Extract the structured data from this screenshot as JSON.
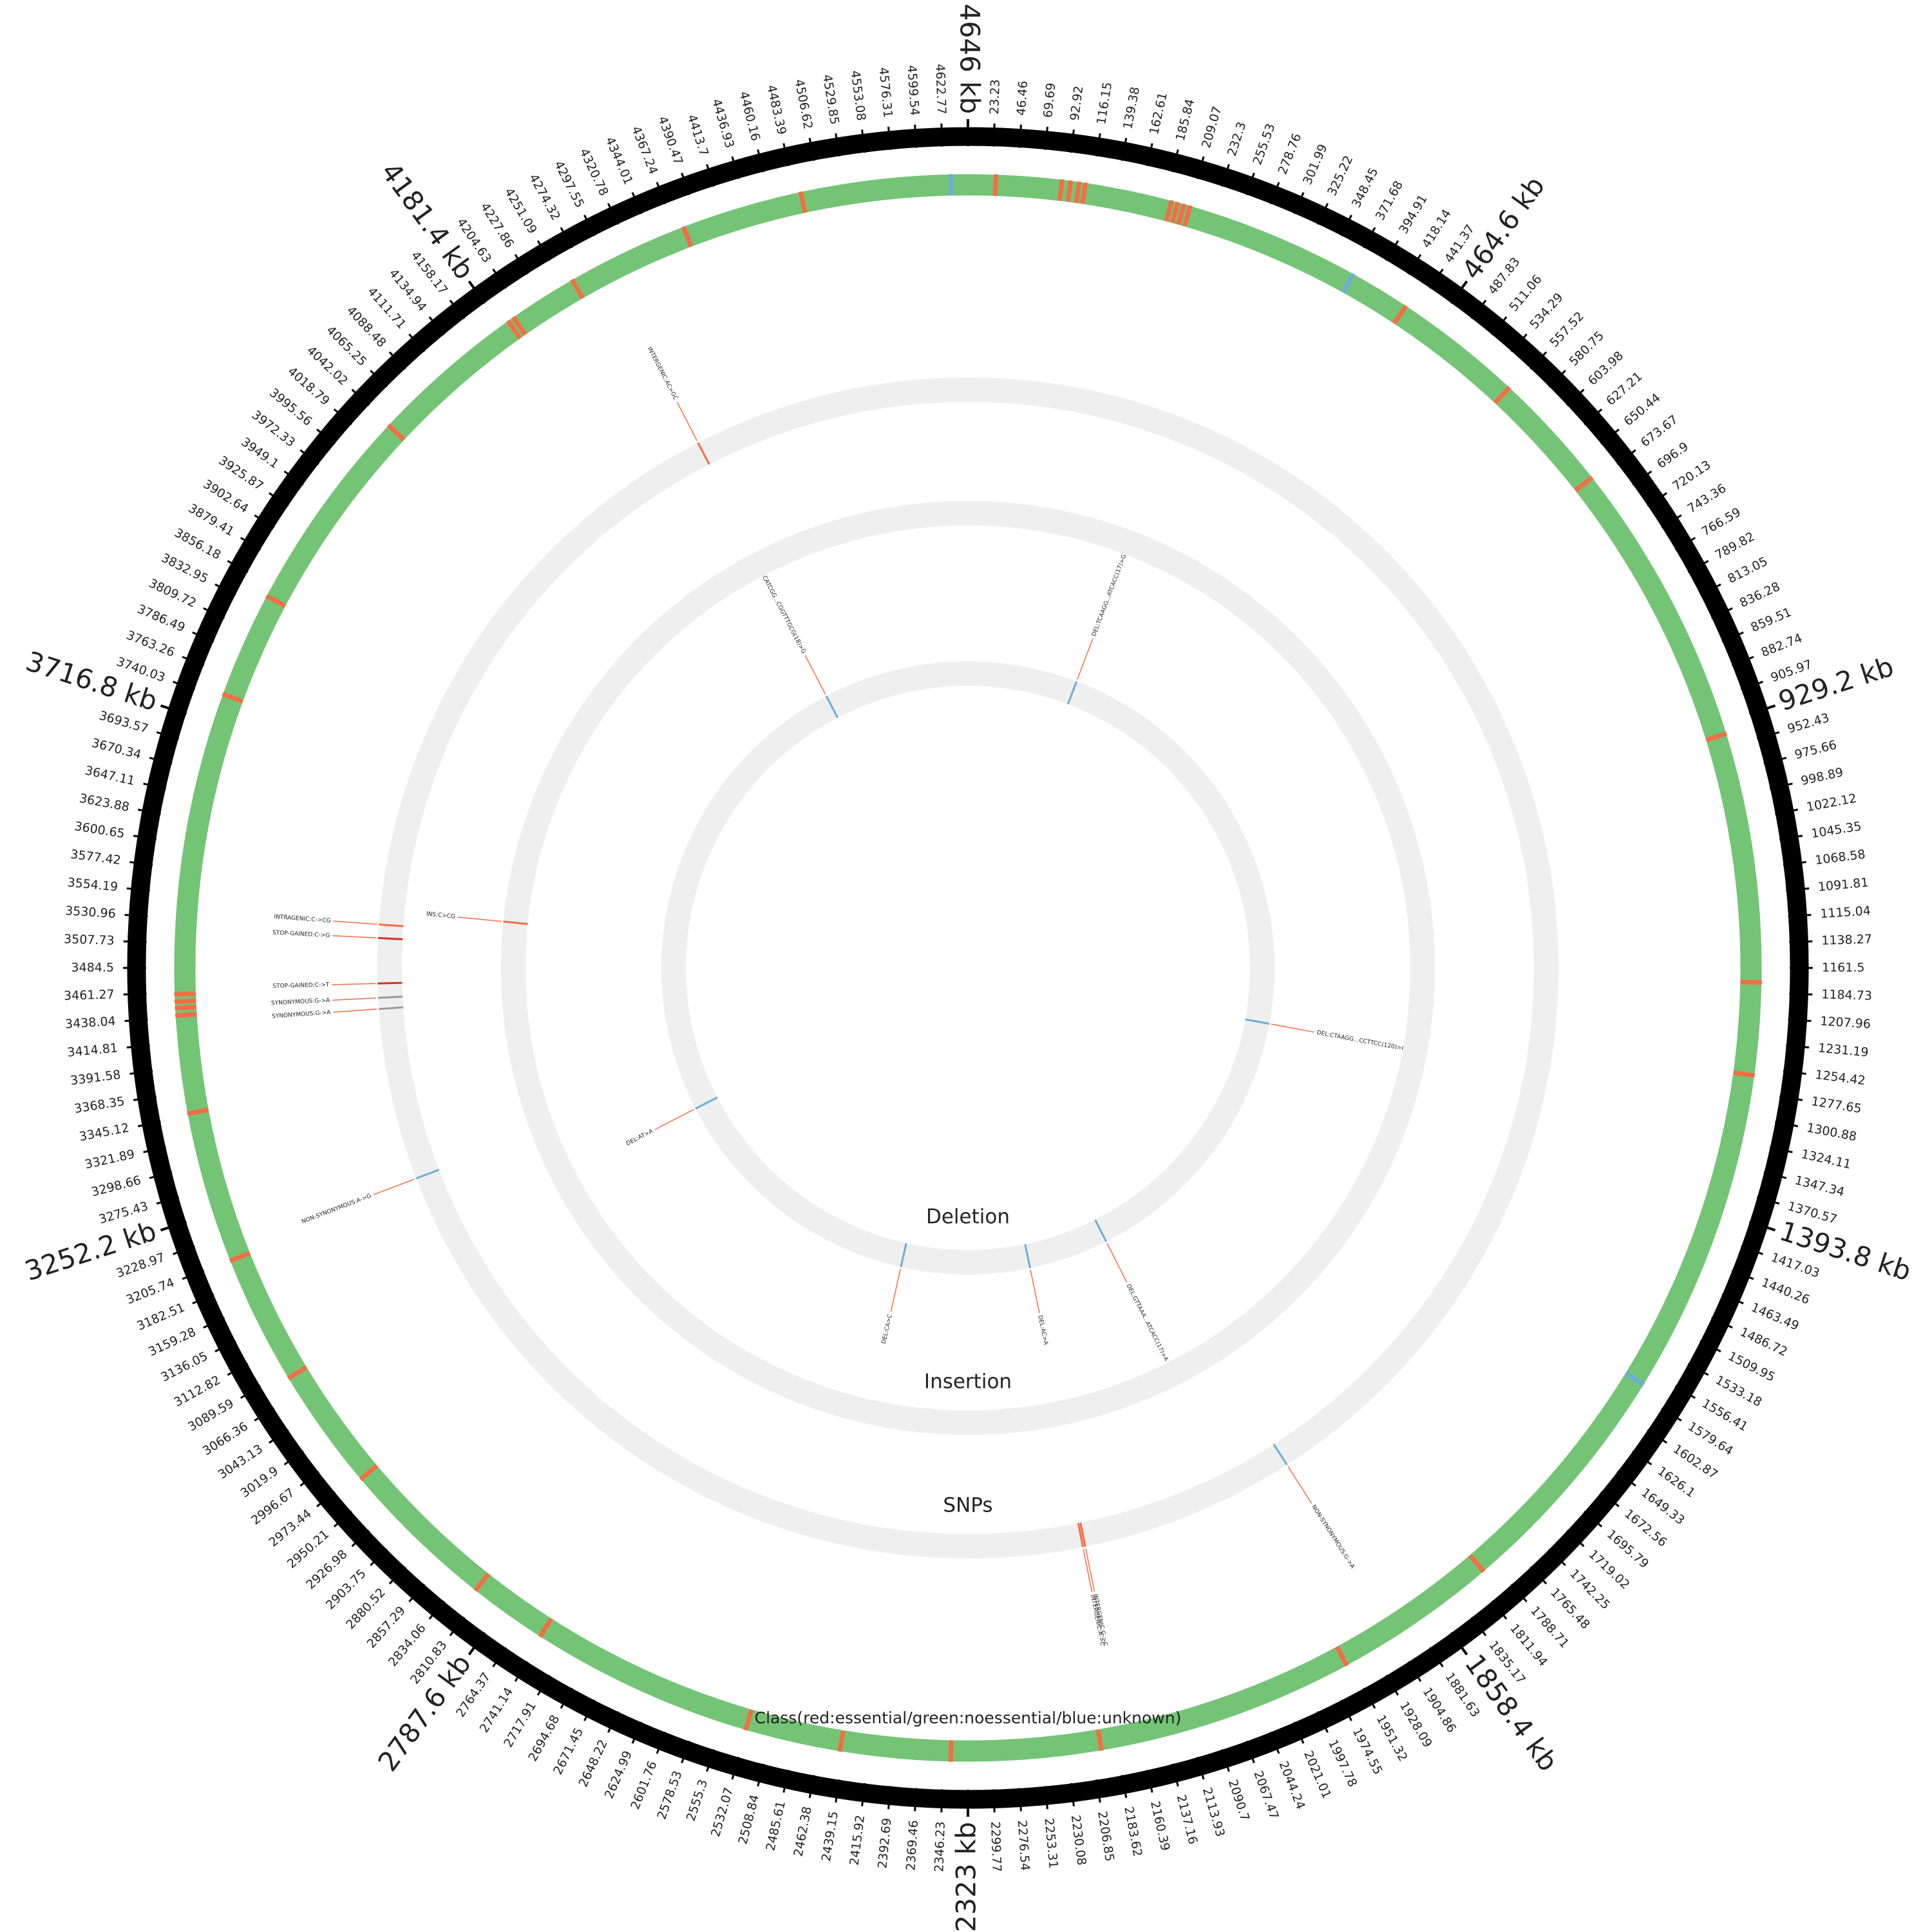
{
  "chart_data": {
    "type": "genome-circle",
    "xlim": [
      0,
      4646
    ],
    "xticks": [
      23.23,
      46.46,
      69.69,
      92.92,
      116.15,
      139.38,
      162.61,
      185.84,
      209.07,
      232.3,
      255.53,
      278.76,
      301.99,
      325.22,
      348.45,
      371.68,
      394.91,
      418.14,
      441.37,
      {
        "value": 464.6,
        "label": "464.6 kb"
      },
      487.83,
      511.06,
      534.29,
      557.52,
      580.75,
      603.98,
      627.21,
      650.44,
      673.67,
      696.9,
      720.13,
      743.36,
      766.59,
      789.82,
      813.05,
      836.28,
      859.51,
      882.74,
      905.97,
      {
        "value": 929.2,
        "label": "929.2 kb"
      },
      952.43,
      975.66,
      998.89,
      1022.12,
      1045.35,
      1068.58,
      1091.81,
      1115.04,
      1138.27,
      1161.5,
      1184.73,
      1207.96,
      1231.19,
      1254.42,
      1277.65,
      1300.88,
      1324.11,
      1347.34,
      1370.57,
      {
        "value": 1393.8,
        "label": "1393.8 kb"
      },
      1417.03,
      1440.26,
      1463.49,
      1486.72,
      1509.95,
      1533.18,
      1556.41,
      1579.64,
      1602.87,
      1626.1,
      1649.33,
      1672.56,
      1695.79,
      1719.02,
      1742.25,
      1765.48,
      1788.71,
      1811.94,
      1835.17,
      {
        "value": 1858.4,
        "label": "1858.4 kb"
      },
      1881.63,
      1904.86,
      1928.09,
      1951.32,
      1974.55,
      1997.78,
      2021.01,
      2044.24,
      2067.47,
      2090.7,
      2113.93,
      2137.16,
      2160.39,
      2183.62,
      2206.85,
      2230.08,
      2253.31,
      2276.54,
      2299.77,
      {
        "value": 2323,
        "label": "2323 kb"
      },
      2346.23,
      2369.46,
      2392.69,
      2415.92,
      2439.15,
      2462.38,
      2485.61,
      2508.84,
      2532.07,
      2555.3,
      2578.53,
      2601.76,
      2624.99,
      2648.22,
      2671.45,
      2694.68,
      2717.91,
      2741.14,
      2764.37,
      {
        "value": 2787.6,
        "label": "2787.6 kb"
      },
      2810.83,
      2834.06,
      2857.29,
      2880.52,
      2903.75,
      2926.98,
      2950.21,
      2973.44,
      2996.67,
      3019.9,
      3043.13,
      3066.36,
      3089.59,
      3112.82,
      3136.05,
      3159.28,
      3182.51,
      3205.74,
      3228.97,
      {
        "value": 3252.2,
        "label": "3252.2 kb"
      },
      3275.43,
      3298.66,
      3321.89,
      3345.12,
      3368.35,
      3391.58,
      3414.81,
      3438.04,
      3461.27,
      3484.5,
      3507.73,
      3530.96,
      3554.19,
      3577.42,
      3600.65,
      3623.88,
      3647.11,
      3670.34,
      3693.57,
      {
        "value": 3716.8,
        "label": "3716.8 kb"
      },
      3740.03,
      3763.26,
      3786.49,
      3809.72,
      3832.95,
      3856.18,
      3879.41,
      3902.64,
      3925.87,
      3949.1,
      3972.33,
      3995.56,
      4018.79,
      4042.02,
      4065.25,
      4088.48,
      4111.71,
      4134.94,
      4158.17,
      {
        "value": 4181.4,
        "label": "4181.4 kb"
      },
      4204.63,
      4227.86,
      4251.09,
      4274.32,
      4297.55,
      4320.78,
      4344.01,
      4367.24,
      4390.47,
      4413.7,
      4436.93,
      4460.16,
      4483.39,
      4506.62,
      4529.85,
      4553.08,
      4576.31,
      4599.54,
      4622.77,
      {
        "value": 4646,
        "label": "4646 kb"
      }
    ],
    "class_track": {
      "label": "Class(red:essential/green:noessential/blue:unknown)",
      "color": "#74c476",
      "essential_color": "#f46d43",
      "unknown_color": "#6baed6",
      "essential": [
        26,
        88,
        96,
        104,
        110,
        192,
        198,
        204,
        210,
        432,
        555,
        669,
        940,
        1175,
        1262,
        1800,
        1955,
        2198,
        2339,
        2443,
        2533,
        2744,
        2818,
        2967,
        3083,
        3205,
        3348,
        3440,
        3447,
        3453,
        3460,
        3745,
        3845,
        4041,
        4189,
        4195,
        4260,
        4375,
        4489
      ],
      "unknown": [
        375,
        1570,
        4630
      ]
    },
    "tracks": [
      {
        "name": "Deletion",
        "variants": [
          {
            "position": 268,
            "label": "DEL:TCAAGG...ATCACC(17)>G",
            "color": "#6baed6"
          },
          {
            "position": 1297,
            "label": "DEL:CTAAGG...CCTTCC(120)>G",
            "color": "#6baed6"
          },
          {
            "position": 1977,
            "label": "DEL:GTTAAA...ATCACC(17)>A",
            "color": "#6baed6"
          },
          {
            "position": 2172,
            "label": "DEL:AC>A",
            "color": "#6baed6"
          },
          {
            "position": 2486,
            "label": "DEL:CA>C",
            "color": "#6baed6"
          },
          {
            "position": 3132,
            "label": "DEL:AT>A",
            "color": "#6baed6"
          },
          {
            "position": 4291,
            "label": "DEL:CATCGG...CGGTTTGCG(18)>G",
            "color": "#6baed6"
          }
        ]
      },
      {
        "name": "Insertion",
        "variants": [
          {
            "position": 3558,
            "label": "INS:C>CG",
            "color": "#f46d43"
          }
        ]
      },
      {
        "name": "SNPs",
        "variants": [
          {
            "position": 1901,
            "label": "NON-SYNONYMOUS:G->A",
            "color": "#6baed6"
          },
          {
            "position": 2175,
            "label": "INTERGENIC:G->C",
            "color": "#f46d43"
          },
          {
            "position": 2178,
            "label": "INTERGENIC:A->C",
            "color": "#f46d43"
          },
          {
            "position": 3215,
            "label": "NON-SYNONYMOUS:A->G",
            "color": "#6baed6"
          },
          {
            "position": 3433,
            "label": "SYNONYMOUS:G->A",
            "color": "#999999"
          },
          {
            "position": 3447,
            "label": "SYNONYMOUS:G->A",
            "color": "#999999"
          },
          {
            "position": 3465,
            "label": "STOP-GAINED:C->T",
            "color": "#d7301f"
          },
          {
            "position": 3522,
            "label": "STOP-GAINED:C->G",
            "color": "#d7301f"
          },
          {
            "position": 3539,
            "label": "INTRAGENIC:C->CG",
            "color": "#f46d43"
          },
          {
            "position": 4295,
            "label": "INTERGENIC:AC>GC",
            "color": "#f46d43"
          }
        ]
      }
    ]
  }
}
